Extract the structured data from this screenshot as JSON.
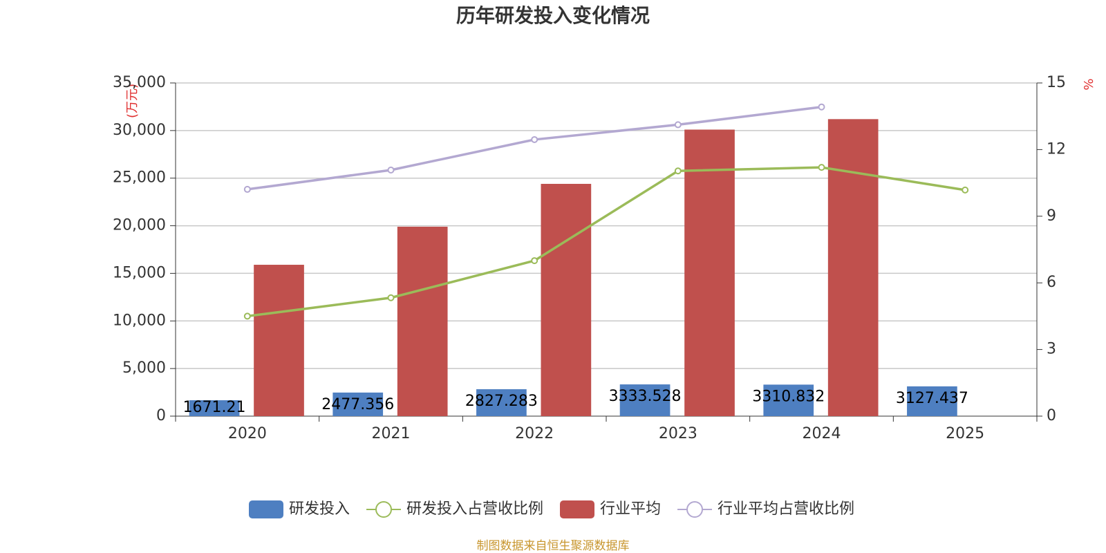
{
  "chart_data": {
    "type": "bar",
    "title": "历年研发投入变化情况",
    "y_label": "(万元)",
    "y2_label": "%",
    "categories": [
      "2020",
      "2021",
      "2022",
      "2023",
      "2024",
      "2025"
    ],
    "series": [
      {
        "name": "研发投入",
        "type": "bar",
        "color": "#4e7fc1",
        "values": [
          1671.21,
          2477.356,
          2827.283,
          3333.528,
          3310.832,
          3127.437
        ]
      },
      {
        "name": "研发投入占营收比例",
        "type": "line",
        "axis": "y2",
        "color": "#9bbb59",
        "values": [
          4.5,
          5.33,
          7.0,
          11.04,
          11.2,
          10.18
        ]
      },
      {
        "name": "行业平均",
        "type": "bar",
        "color": "#c0504d",
        "values": [
          15900,
          19900,
          24400,
          30100,
          31200,
          null
        ]
      },
      {
        "name": "行业平均占营收比例",
        "type": "line",
        "axis": "y2",
        "color": "#b3a8d1",
        "values": [
          10.21,
          11.08,
          12.45,
          13.12,
          13.92,
          null
        ]
      }
    ],
    "ylim": [
      0,
      35000
    ],
    "yticks": [
      0,
      {
        "value": 5000,
        "label": "5,000"
      },
      {
        "value": 10000,
        "label": "10,000"
      },
      {
        "value": 15000,
        "label": "15,000"
      },
      {
        "value": 20000,
        "label": "20,000"
      },
      {
        "value": 25000,
        "label": "25,000"
      },
      {
        "value": 30000,
        "label": "30,000"
      },
      {
        "value": 35000,
        "label": "35,000"
      }
    ],
    "y2lim": [
      0,
      15
    ],
    "y2ticks": [
      0,
      3,
      6,
      9,
      12,
      15
    ],
    "grid": true,
    "legend": "bottom",
    "source": "制图数据来自恒生聚源数据库"
  }
}
